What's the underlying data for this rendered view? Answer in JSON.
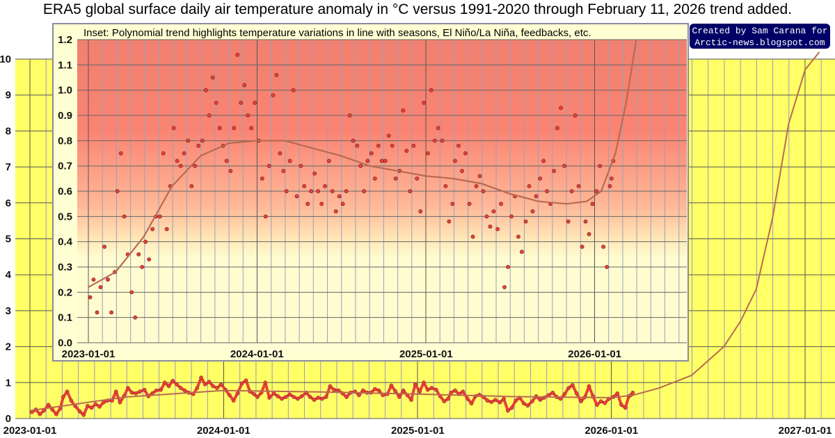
{
  "title": "ERA5 global surface daily air temperature anomaly in °C versus 1991-2020 through February 11, 2026 trend added.",
  "credit": {
    "line1": "Created by Sam Carana for",
    "line2": "Arctic-news.blogspot.com"
  },
  "colors": {
    "main_bg": "#ffff66",
    "inset_bg": "#ffffd4",
    "dots": "#e8403a",
    "trend": "#b86a50",
    "credit_bg": "#000066"
  },
  "chart_data": [
    {
      "id": "main",
      "type": "line",
      "title": "ERA5 global surface daily air temperature anomaly in °C versus 1991-2020 through February 11, 2026 trend added.",
      "xlabel": "",
      "ylabel": "",
      "xlim": [
        "2023-01-01",
        "2027-02-10"
      ],
      "ylim": [
        0,
        10
      ],
      "x_ticks": [
        "2023-01-01",
        "2024-01-01",
        "2025-01-01",
        "2026-01-01",
        "2027-01-01"
      ],
      "y_ticks": [
        "0",
        "1",
        "2",
        "3",
        "4",
        "5",
        "6",
        "7",
        "8",
        "9",
        "10"
      ],
      "grid": true,
      "trend": [
        [
          "2023-01-01",
          0.22
        ],
        [
          "2023-07-01",
          0.6
        ],
        [
          "2024-01-01",
          0.78
        ],
        [
          "2024-07-01",
          0.74
        ],
        [
          "2025-01-01",
          0.68
        ],
        [
          "2025-07-01",
          0.61
        ],
        [
          "2026-01-01",
          0.58
        ],
        [
          "2026-02-11",
          0.65
        ],
        [
          "2026-04-01",
          0.85
        ],
        [
          "2026-06-01",
          1.2
        ],
        [
          "2026-08-01",
          2.0
        ],
        [
          "2026-09-01",
          2.7
        ],
        [
          "2026-10-01",
          3.6
        ],
        [
          "2026-11-01",
          5.6
        ],
        [
          "2026-12-01",
          8.2
        ],
        [
          "2027-01-01",
          9.7
        ],
        [
          "2027-01-28",
          10.2
        ]
      ]
    },
    {
      "id": "inset",
      "type": "scatter",
      "title": "Inset: Polynomial trend highlights temperature variations in line with seasons, El Niño/La Niña, feedbacks, etc.",
      "xlim": [
        "2022-12-07",
        "2026-07-15"
      ],
      "ylim": [
        0,
        1.2
      ],
      "x_ticks": [
        "2023-01-01",
        "2024-01-01",
        "2025-01-01",
        "2026-01-01"
      ],
      "y_ticks": [
        "0.0",
        "0.1",
        "0.2",
        "0.3",
        "0.4",
        "0.5",
        "0.6",
        "0.7",
        "0.8",
        "0.9",
        "1.0",
        "1.1",
        "1.2"
      ],
      "grid": true,
      "trend": [
        [
          "2023-01-01",
          0.22
        ],
        [
          "2023-03-01",
          0.28
        ],
        [
          "2023-05-01",
          0.42
        ],
        [
          "2023-07-01",
          0.62
        ],
        [
          "2023-09-01",
          0.74
        ],
        [
          "2023-11-01",
          0.79
        ],
        [
          "2024-01-01",
          0.8
        ],
        [
          "2024-03-01",
          0.8
        ],
        [
          "2024-05-01",
          0.77
        ],
        [
          "2024-07-01",
          0.74
        ],
        [
          "2024-09-01",
          0.7
        ],
        [
          "2024-11-01",
          0.68
        ],
        [
          "2025-01-01",
          0.66
        ],
        [
          "2025-03-01",
          0.65
        ],
        [
          "2025-05-01",
          0.63
        ],
        [
          "2025-07-01",
          0.59
        ],
        [
          "2025-09-01",
          0.56
        ],
        [
          "2025-11-01",
          0.55
        ],
        [
          "2025-12-15",
          0.56
        ],
        [
          "2026-01-15",
          0.6
        ],
        [
          "2026-02-15",
          0.75
        ],
        [
          "2026-03-10",
          0.95
        ],
        [
          "2026-04-01",
          1.2
        ]
      ]
    }
  ],
  "daily_anomaly_by_month": {
    "2023-01": [
      0.18,
      0.25,
      0.12,
      0.22
    ],
    "2023-02": [
      0.38,
      0.25,
      0.12,
      0.28
    ],
    "2023-03": [
      0.6,
      0.75,
      0.5,
      0.35
    ],
    "2023-04": [
      0.2,
      0.1,
      0.35,
      0.3
    ],
    "2023-05": [
      0.4,
      0.33,
      0.45,
      0.5
    ],
    "2023-06": [
      0.5,
      0.75,
      0.45,
      0.62
    ],
    "2023-07": [
      0.85,
      0.72,
      0.7,
      0.75
    ],
    "2023-08": [
      0.8,
      0.62,
      0.7,
      0.78
    ],
    "2023-09": [
      0.8,
      1.0,
      0.9,
      1.05
    ],
    "2023-10": [
      0.95,
      0.85,
      0.78,
      0.72
    ],
    "2023-11": [
      0.68,
      0.85,
      1.14,
      0.95
    ],
    "2023-12": [
      1.02,
      0.9,
      0.85,
      0.95
    ],
    "2024-01": [
      0.8,
      0.65,
      0.5,
      0.7
    ],
    "2024-02": [
      0.98,
      1.06,
      0.75,
      0.68
    ],
    "2024-03": [
      0.6,
      0.72,
      1.0,
      0.58
    ],
    "2024-04": [
      0.7,
      0.62,
      0.55,
      0.6
    ],
    "2024-05": [
      0.67,
      0.6,
      0.55,
      0.62
    ],
    "2024-06": [
      0.72,
      0.6,
      0.52,
      0.58
    ],
    "2024-07": [
      0.55,
      0.6,
      0.9,
      0.8
    ],
    "2024-08": [
      0.78,
      0.7,
      0.6,
      0.72
    ],
    "2024-09": [
      0.75,
      0.65,
      0.78,
      0.72
    ],
    "2024-10": [
      0.72,
      0.82,
      0.78,
      0.65
    ],
    "2024-11": [
      0.68,
      0.92,
      0.76,
      0.6
    ],
    "2024-12": [
      0.78,
      0.65,
      0.52,
      0.95
    ],
    "2025-01": [
      0.75,
      1.0,
      0.8,
      0.85
    ],
    "2025-02": [
      0.8,
      0.62,
      0.48,
      0.55
    ],
    "2025-03": [
      0.72,
      0.78,
      0.68,
      0.75
    ],
    "2025-04": [
      0.55,
      0.42,
      0.62,
      0.66
    ],
    "2025-05": [
      0.6,
      0.5,
      0.46,
      0.52
    ],
    "2025-06": [
      0.45,
      0.55,
      0.22,
      0.3
    ],
    "2025-07": [
      0.5,
      0.58,
      0.42,
      0.36
    ],
    "2025-08": [
      0.48,
      0.62,
      0.52,
      0.58
    ],
    "2025-09": [
      0.65,
      0.72,
      0.6,
      0.55
    ],
    "2025-10": [
      0.68,
      0.85,
      0.93,
      0.7
    ],
    "2025-11": [
      0.48,
      0.6,
      0.9,
      0.62
    ],
    "2025-12": [
      0.38,
      0.48,
      0.43,
      0.55
    ],
    "2026-01": [
      0.6,
      0.7,
      0.38,
      0.3
    ],
    "2026-02": [
      0.62,
      0.65,
      0.72
    ]
  }
}
